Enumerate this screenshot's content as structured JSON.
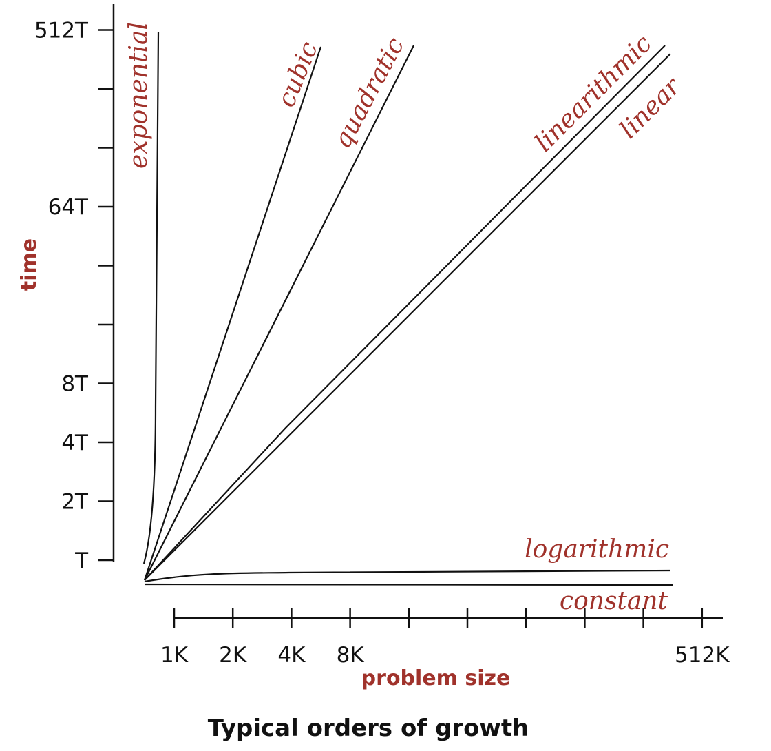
{
  "chart_data": {
    "type": "line",
    "title": "Typical orders of growth",
    "xlabel": "problem size",
    "ylabel": "time",
    "x_scale": "log2",
    "y_scale": "log2",
    "x_ticks": [
      {
        "label": "1K"
      },
      {
        "label": "2K"
      },
      {
        "label": "4K"
      },
      {
        "label": "8K"
      },
      {
        "label": ""
      },
      {
        "label": ""
      },
      {
        "label": ""
      },
      {
        "label": ""
      },
      {
        "label": ""
      },
      {
        "label": "512K"
      }
    ],
    "y_ticks": [
      {
        "label": "T"
      },
      {
        "label": "2T"
      },
      {
        "label": "4T"
      },
      {
        "label": "8T"
      },
      {
        "label": ""
      },
      {
        "label": ""
      },
      {
        "label": "64T"
      },
      {
        "label": ""
      },
      {
        "label": ""
      },
      {
        "label": "512T"
      }
    ],
    "series": [
      {
        "name": "exponential"
      },
      {
        "name": "cubic"
      },
      {
        "name": "quadratic"
      },
      {
        "name": "linearithmic"
      },
      {
        "name": "linear"
      },
      {
        "name": "logarithmic"
      },
      {
        "name": "constant"
      }
    ],
    "grid": false,
    "legend": "inline curve labels"
  }
}
